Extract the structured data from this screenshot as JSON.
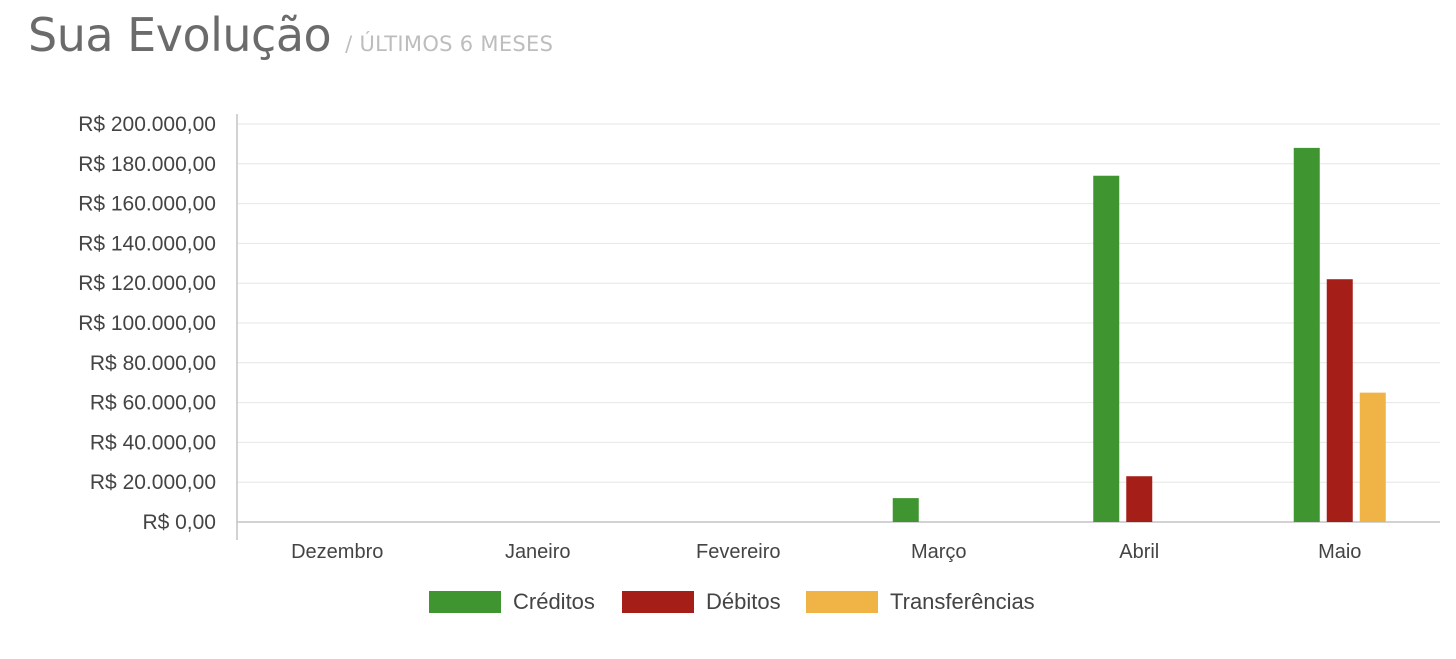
{
  "header": {
    "title": "Sua Evolução",
    "subtitle": "/ ÚLTIMOS 6 MESES"
  },
  "chart_data": {
    "type": "bar",
    "title": "Sua Evolução",
    "subtitle": "/ ÚLTIMOS 6 MESES",
    "categories": [
      "Dezembro",
      "Janeiro",
      "Fevereiro",
      "Março",
      "Abril",
      "Maio"
    ],
    "series": [
      {
        "name": "Créditos",
        "color": "#3f952f",
        "values": [
          0,
          0,
          0,
          12000,
          174000,
          188000
        ]
      },
      {
        "name": "Débitos",
        "color": "#a51f18",
        "values": [
          0,
          0,
          0,
          0,
          23000,
          122000
        ]
      },
      {
        "name": "Transferências",
        "color": "#f0b345",
        "values": [
          0,
          0,
          0,
          0,
          0,
          65000
        ]
      }
    ],
    "yticks": [
      "R$ 0,00",
      "R$ 20.000,00",
      "R$ 40.000,00",
      "R$ 60.000,00",
      "R$ 80.000,00",
      "R$ 100.000,00",
      "R$ 120.000,00",
      "R$ 140.000,00",
      "R$ 160.000,00",
      "R$ 180.000,00",
      "R$ 200.000,00"
    ],
    "ylim": [
      0,
      200000
    ],
    "ytick_step": 20000,
    "grid": true,
    "legend_position": "bottom-center",
    "xlabel": "",
    "ylabel": ""
  }
}
